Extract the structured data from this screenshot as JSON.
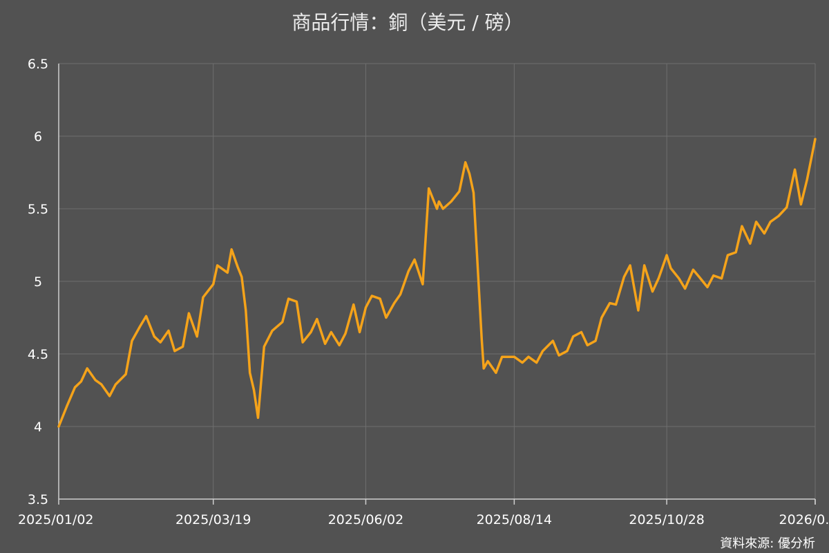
{
  "chart_data": {
    "type": "line",
    "title": "商品行情：銅（美元 / 磅）",
    "source": "資料來源: 優分析",
    "xlabel": "",
    "ylabel": "",
    "ylim": [
      3.5,
      6.5
    ],
    "yticks": [
      "3.5",
      "4",
      "4.5",
      "5",
      "5.5",
      "6",
      "6.5"
    ],
    "xticks": [
      {
        "date": "2025-01-02",
        "label": "2025/01/02"
      },
      {
        "date": "2025-03-19",
        "label": "2025/03/19"
      },
      {
        "date": "2025-06-02",
        "label": "2025/06/02"
      },
      {
        "date": "2025-08-14",
        "label": "2025/08/14"
      },
      {
        "date": "2025-10-28",
        "label": "2025/10/28"
      },
      {
        "date": "2026-01-09",
        "label": "2026/0..."
      }
    ],
    "xlim": [
      "2025-01-02",
      "2026-01-09"
    ],
    "grid": true,
    "line_color": "#f5a31a",
    "series": [
      {
        "x": [
          "2025-01-02",
          "2025-01-06",
          "2025-01-10",
          "2025-01-13",
          "2025-01-16",
          "2025-01-20",
          "2025-01-23",
          "2025-01-27",
          "2025-01-30",
          "2025-02-04",
          "2025-02-07",
          "2025-02-11",
          "2025-02-14",
          "2025-02-18",
          "2025-02-21",
          "2025-02-25",
          "2025-02-28",
          "2025-03-04",
          "2025-03-07",
          "2025-03-11",
          "2025-03-14",
          "2025-03-19",
          "2025-03-21",
          "2025-03-24",
          "2025-03-26",
          "2025-03-28",
          "2025-03-31",
          "2025-04-02",
          "2025-04-04",
          "2025-04-06",
          "2025-04-08",
          "2025-04-10",
          "2025-04-13",
          "2025-04-17",
          "2025-04-22",
          "2025-04-25",
          "2025-04-29",
          "2025-05-02",
          "2025-05-06",
          "2025-05-09",
          "2025-05-13",
          "2025-05-16",
          "2025-05-20",
          "2025-05-23",
          "2025-05-27",
          "2025-05-30",
          "2025-06-02",
          "2025-06-05",
          "2025-06-09",
          "2025-06-12",
          "2025-06-16",
          "2025-06-19",
          "2025-06-23",
          "2025-06-26",
          "2025-06-30",
          "2025-07-03",
          "2025-07-07",
          "2025-07-08",
          "2025-07-10",
          "2025-07-14",
          "2025-07-18",
          "2025-07-21",
          "2025-07-23",
          "2025-07-25",
          "2025-07-29",
          "2025-07-30",
          "2025-08-01",
          "2025-08-05",
          "2025-08-08",
          "2025-08-12",
          "2025-08-14",
          "2025-08-18",
          "2025-08-21",
          "2025-08-25",
          "2025-08-28",
          "2025-09-02",
          "2025-09-05",
          "2025-09-09",
          "2025-09-12",
          "2025-09-16",
          "2025-09-19",
          "2025-09-23",
          "2025-09-26",
          "2025-09-30",
          "2025-10-03",
          "2025-10-07",
          "2025-10-10",
          "2025-10-14",
          "2025-10-17",
          "2025-10-21",
          "2025-10-24",
          "2025-10-28",
          "2025-10-30",
          "2025-11-03",
          "2025-11-06",
          "2025-11-10",
          "2025-11-13",
          "2025-11-17",
          "2025-11-20",
          "2025-11-24",
          "2025-11-27",
          "2025-12-01",
          "2025-12-04",
          "2025-12-08",
          "2025-12-11",
          "2025-12-15",
          "2025-12-18",
          "2025-12-22",
          "2025-12-26",
          "2025-12-30",
          "2026-01-02",
          "2026-01-05",
          "2026-01-09"
        ],
        "y": [
          4.0,
          4.14,
          4.27,
          4.31,
          4.4,
          4.32,
          4.29,
          4.21,
          4.29,
          4.36,
          4.59,
          4.69,
          4.76,
          4.62,
          4.58,
          4.66,
          4.52,
          4.55,
          4.78,
          4.62,
          4.89,
          4.98,
          5.11,
          5.08,
          5.06,
          5.22,
          5.1,
          5.03,
          4.8,
          4.37,
          4.25,
          4.06,
          4.55,
          4.66,
          4.72,
          4.88,
          4.86,
          4.58,
          4.65,
          4.74,
          4.57,
          4.65,
          4.56,
          4.64,
          4.84,
          4.65,
          4.82,
          4.9,
          4.88,
          4.75,
          4.85,
          4.91,
          5.07,
          5.15,
          4.98,
          5.64,
          5.5,
          5.55,
          5.5,
          5.55,
          5.62,
          5.82,
          5.74,
          5.61,
          4.6,
          4.4,
          4.45,
          4.37,
          4.48,
          4.48,
          4.48,
          4.44,
          4.48,
          4.44,
          4.52,
          4.59,
          4.49,
          4.52,
          4.62,
          4.65,
          4.56,
          4.59,
          4.75,
          4.85,
          4.84,
          5.03,
          5.11,
          4.8,
          5.11,
          4.93,
          5.02,
          5.18,
          5.09,
          5.02,
          4.95,
          5.08,
          5.03,
          4.96,
          5.04,
          5.02,
          5.18,
          5.2,
          5.38,
          5.26,
          5.41,
          5.33,
          5.41,
          5.45,
          5.51,
          5.77,
          5.53,
          5.7,
          5.98
        ]
      }
    ]
  }
}
